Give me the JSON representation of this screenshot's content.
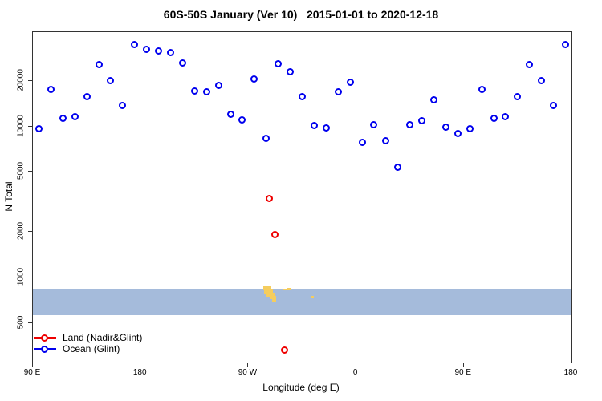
{
  "chart_data": {
    "type": "scatter",
    "title": "60S-50S January (Ver 10)   2015-01-01 to 2020-12-18",
    "xlabel": "Longitude (deg E)",
    "ylabel": "N Total",
    "x_axis": {
      "range": [
        90,
        540
      ],
      "ticks": [
        90,
        180,
        270,
        360,
        450,
        540
      ],
      "tick_labels": [
        "90 E",
        "180",
        "90 W",
        "0",
        "90 E",
        "180"
      ]
    },
    "y_axis": {
      "scale": "log",
      "range": [
        275,
        42000
      ],
      "ticks": [
        500,
        1000,
        2000,
        5000,
        10000,
        20000
      ],
      "tick_labels": [
        "500",
        "1000",
        "2000",
        "5000",
        "10000",
        "20000"
      ]
    },
    "grid": false,
    "legend_position": "bottom-left",
    "series": [
      {
        "name": "Land (Nadir&Glint)",
        "color": "#ee0000",
        "lon": [
          287.5,
          292,
          300.5
        ],
        "n": [
          3350,
          1920,
          330
        ]
      },
      {
        "name": "Ocean (Glint)",
        "color": "#0000ee",
        "lon": [
          95,
          105,
          115,
          125,
          135,
          145,
          155,
          165,
          175,
          185,
          195,
          205,
          215,
          225,
          235,
          245,
          255,
          265,
          275,
          285,
          295,
          305,
          315,
          325,
          335,
          345,
          355,
          365,
          375,
          385,
          395,
          405,
          415,
          425,
          435,
          445,
          455,
          465,
          475,
          485,
          495,
          505,
          515,
          525,
          535
        ],
        "n": [
          9600,
          17600,
          11300,
          11600,
          15800,
          25700,
          20000,
          13800,
          34700,
          32300,
          31500,
          31000,
          26200,
          17100,
          16900,
          18700,
          12000,
          11000,
          20500,
          8300,
          26000,
          22900,
          15800,
          10100,
          9800,
          17000,
          19700,
          7800,
          10300,
          8000,
          5400,
          10200,
          10900,
          14900,
          9950,
          9000,
          9600,
          17600,
          11300,
          11600,
          15800,
          25700,
          20000,
          13800,
          34900
        ]
      }
    ],
    "map_band": {
      "description": "latitude-strip map overlay: ocean band with land patches",
      "ocean_color": "#a5bbdb",
      "land_color": "#f5cd5e",
      "n_top": 843,
      "n_bottom": 563,
      "land_patches": [
        {
          "x": 287,
          "y": 316,
          "w": 10,
          "h": 5
        },
        {
          "x": 288,
          "y": 320,
          "w": 11,
          "h": 6
        },
        {
          "x": 291,
          "y": 325,
          "w": 10,
          "h": 5
        },
        {
          "x": 295,
          "y": 329,
          "w": 8,
          "h": 4
        },
        {
          "x": 298,
          "y": 332,
          "w": 5,
          "h": 4
        },
        {
          "x": 311,
          "y": 320,
          "w": 5,
          "h": 2
        },
        {
          "x": 317,
          "y": 319,
          "w": 4,
          "h": 2
        },
        {
          "x": 347,
          "y": 329,
          "w": 3,
          "h": 2
        }
      ]
    },
    "artifact_line": {
      "lon": 180,
      "n_top": 536,
      "n_bottom": 276
    }
  },
  "legend": {
    "items": [
      {
        "label": "Land (Nadir&Glint)",
        "color": "#ee0000"
      },
      {
        "label": "Ocean (Glint)",
        "color": "#0000ee"
      }
    ]
  }
}
